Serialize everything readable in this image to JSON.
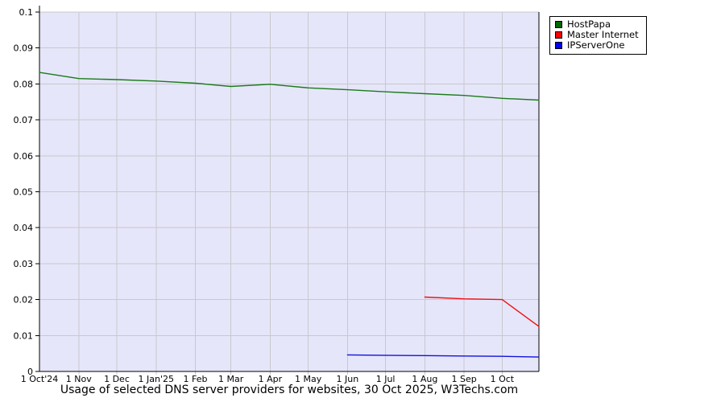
{
  "title": "Usage of selected DNS server providers for websites, 30 Oct 2025, W3Techs.com",
  "legend": {
    "items": [
      {
        "label": "HostPapa",
        "color": "#006600"
      },
      {
        "label": "Master Internet",
        "color": "#ff0000"
      },
      {
        "label": "IPServerOne",
        "color": "#0000ff"
      }
    ]
  },
  "chart_data": {
    "type": "line",
    "title": "Usage of selected DNS server providers for websites, 30 Oct 2025, W3Techs.com",
    "xlabel": "",
    "ylabel": "",
    "ylim": [
      0,
      0.1
    ],
    "grid": true,
    "legend_position": "top-right-outside",
    "plot_bg_color": "#e6e6fa",
    "grid_color": "#c8c8cc",
    "axis_color": "#000000",
    "y_ticks": [
      0,
      0.01,
      0.02,
      0.03,
      0.04,
      0.05,
      0.06,
      0.07,
      0.08,
      0.09,
      0.1
    ],
    "y_tick_labels": [
      "0",
      "0.01",
      "0.02",
      "0.03",
      "0.04",
      "0.05",
      "0.06",
      "0.07",
      "0.08",
      "0.09",
      "0.1"
    ],
    "x_tick_labels": [
      "1 Oct'24",
      "1 Nov",
      "1 Dec",
      "1 Jan'25",
      "1 Feb",
      "1 Mar",
      "1 Apr",
      "1 May",
      "1 Jun",
      "1 Jul",
      "1 Aug",
      "1 Sep",
      "1 Oct"
    ],
    "x_day_offsets": [
      0,
      31,
      61,
      92,
      123,
      151,
      182,
      212,
      243,
      273,
      304,
      335,
      365
    ],
    "x_end_day": 394,
    "series": [
      {
        "name": "HostPapa",
        "color": "#1a7a1a",
        "days": [
          0,
          31,
          61,
          92,
          123,
          151,
          182,
          212,
          243,
          273,
          304,
          335,
          365,
          394
        ],
        "values": [
          0.0832,
          0.0815,
          0.0812,
          0.0808,
          0.0802,
          0.0793,
          0.0799,
          0.0789,
          0.0784,
          0.0778,
          0.0773,
          0.0768,
          0.076,
          0.0755
        ]
      },
      {
        "name": "Master Internet",
        "color": "#ee1111",
        "days": [
          304,
          335,
          365,
          394
        ],
        "values": [
          0.0207,
          0.0202,
          0.02,
          0.0125
        ]
      },
      {
        "name": "IPServerOne",
        "color": "#1111dd",
        "days": [
          243,
          273,
          304,
          335,
          365,
          394
        ],
        "values": [
          0.0046,
          0.0045,
          0.0044,
          0.0043,
          0.0042,
          0.004
        ]
      }
    ]
  }
}
